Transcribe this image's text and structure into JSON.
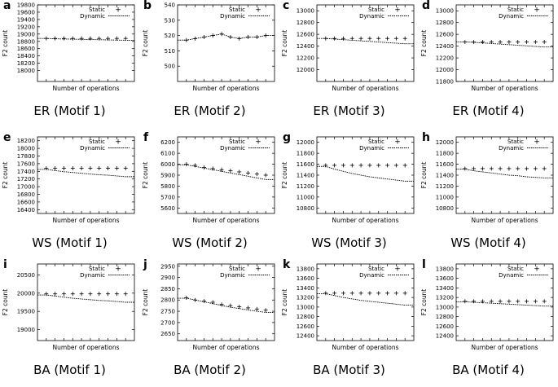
{
  "figure": {
    "static_label": "Static",
    "dynamic_label": "Dynamic",
    "static_marker": "+",
    "xlabel": "Number of operations",
    "ylabel": "F2 count"
  },
  "chart_data": [
    {
      "letter": "a",
      "caption": "ER (Motif 1)",
      "type": "line",
      "title": "",
      "xlabel": "Number of operations",
      "ylabel": "F2 count",
      "ylim": [
        17700,
        19800
      ],
      "yticks": [
        18000,
        18200,
        18400,
        18600,
        18800,
        19000,
        19200,
        19400,
        19600,
        19800
      ],
      "x": [
        1,
        2,
        3,
        4,
        5,
        6,
        7,
        8,
        9,
        10
      ],
      "series": [
        {
          "name": "Static",
          "values": [
            18880,
            18880,
            18880,
            18880,
            18880,
            18880,
            18880,
            18880,
            18880,
            18880
          ]
        },
        {
          "name": "Dynamic",
          "values": [
            18880,
            18870,
            18865,
            18860,
            18855,
            18850,
            18845,
            18840,
            18835,
            18830
          ]
        }
      ]
    },
    {
      "letter": "b",
      "caption": "ER (Motif 2)",
      "type": "line",
      "title": "",
      "xlabel": "Number of operations",
      "ylabel": "F2 count",
      "ylim": [
        490,
        540
      ],
      "yticks": [
        500,
        510,
        520,
        530,
        540
      ],
      "x": [
        1,
        2,
        3,
        4,
        5,
        6,
        7,
        8,
        9,
        10
      ],
      "series": [
        {
          "name": "Static",
          "values": [
            517,
            518,
            519,
            520,
            521,
            519,
            518,
            519,
            519,
            520
          ]
        },
        {
          "name": "Dynamic",
          "values": [
            517,
            518,
            519,
            520,
            521,
            519,
            518,
            519,
            519,
            520
          ]
        }
      ]
    },
    {
      "letter": "c",
      "caption": "ER (Motif 3)",
      "type": "line",
      "title": "",
      "xlabel": "Number of operations",
      "ylabel": "F2 count",
      "ylim": [
        11800,
        13100
      ],
      "yticks": [
        12000,
        12200,
        12400,
        12600,
        12800,
        13000
      ],
      "x": [
        1,
        2,
        3,
        4,
        5,
        6,
        7,
        8,
        9,
        10
      ],
      "series": [
        {
          "name": "Static",
          "values": [
            12530,
            12530,
            12530,
            12530,
            12530,
            12530,
            12530,
            12530,
            12530,
            12530
          ]
        },
        {
          "name": "Dynamic",
          "values": [
            12530,
            12520,
            12510,
            12500,
            12490,
            12480,
            12470,
            12460,
            12450,
            12440
          ]
        }
      ]
    },
    {
      "letter": "d",
      "caption": "ER (Motif 4)",
      "type": "line",
      "title": "",
      "xlabel": "Number of operations",
      "ylabel": "F2 count",
      "ylim": [
        11800,
        13100
      ],
      "yticks": [
        11800,
        12000,
        12200,
        12400,
        12600,
        12800,
        13000
      ],
      "x": [
        1,
        2,
        3,
        4,
        5,
        6,
        7,
        8,
        9,
        10
      ],
      "series": [
        {
          "name": "Static",
          "values": [
            12470,
            12470,
            12470,
            12470,
            12470,
            12470,
            12470,
            12470,
            12470,
            12470
          ]
        },
        {
          "name": "Dynamic",
          "values": [
            12470,
            12465,
            12455,
            12445,
            12435,
            12425,
            12415,
            12405,
            12395,
            12385
          ]
        }
      ]
    },
    {
      "letter": "e",
      "caption": "WS (Motif 1)",
      "type": "line",
      "title": "",
      "xlabel": "Number of operations",
      "ylabel": "F2 count",
      "ylim": [
        16300,
        18300
      ],
      "yticks": [
        16400,
        16600,
        16800,
        17000,
        17200,
        17400,
        17600,
        17800,
        18000,
        18200
      ],
      "x": [
        1,
        2,
        3,
        4,
        5,
        6,
        7,
        8,
        9,
        10
      ],
      "series": [
        {
          "name": "Static",
          "values": [
            17480,
            17480,
            17480,
            17480,
            17480,
            17480,
            17480,
            17480,
            17480,
            17480
          ]
        },
        {
          "name": "Dynamic",
          "values": [
            17450,
            17420,
            17390,
            17370,
            17350,
            17330,
            17310,
            17300,
            17280,
            17260
          ]
        }
      ]
    },
    {
      "letter": "f",
      "caption": "WS (Motif 2)",
      "type": "line",
      "title": "",
      "xlabel": "Number of operations",
      "ylabel": "F2 count",
      "ylim": [
        5550,
        6250
      ],
      "yticks": [
        5600,
        5700,
        5800,
        5900,
        6000,
        6100,
        6200
      ],
      "x": [
        1,
        2,
        3,
        4,
        5,
        6,
        7,
        8,
        9,
        10
      ],
      "series": [
        {
          "name": "Static",
          "values": [
            6000,
            5990,
            5970,
            5960,
            5950,
            5940,
            5930,
            5920,
            5910,
            5900
          ]
        },
        {
          "name": "Dynamic",
          "values": [
            5995,
            5980,
            5965,
            5950,
            5935,
            5920,
            5905,
            5890,
            5875,
            5860
          ]
        }
      ]
    },
    {
      "letter": "g",
      "caption": "WS (Motif 3)",
      "type": "line",
      "title": "",
      "xlabel": "Number of operations",
      "ylabel": "F2 count",
      "ylim": [
        10700,
        12100
      ],
      "yticks": [
        10800,
        11000,
        11200,
        11400,
        11600,
        11800,
        12000
      ],
      "x": [
        1,
        2,
        3,
        4,
        5,
        6,
        7,
        8,
        9,
        10
      ],
      "series": [
        {
          "name": "Static",
          "values": [
            11580,
            11580,
            11580,
            11580,
            11580,
            11580,
            11580,
            11580,
            11580,
            11580
          ]
        },
        {
          "name": "Dynamic",
          "values": [
            11560,
            11510,
            11470,
            11430,
            11400,
            11370,
            11350,
            11330,
            11310,
            11290
          ]
        }
      ]
    },
    {
      "letter": "h",
      "caption": "WS (Motif 4)",
      "type": "line",
      "title": "",
      "xlabel": "Number of operations",
      "ylabel": "F2 count",
      "ylim": [
        10700,
        12100
      ],
      "yticks": [
        10800,
        11000,
        11200,
        11400,
        11600,
        11800,
        12000
      ],
      "x": [
        1,
        2,
        3,
        4,
        5,
        6,
        7,
        8,
        9,
        10
      ],
      "series": [
        {
          "name": "Static",
          "values": [
            11520,
            11520,
            11520,
            11520,
            11520,
            11520,
            11520,
            11520,
            11520,
            11520
          ]
        },
        {
          "name": "Dynamic",
          "values": [
            11510,
            11480,
            11460,
            11440,
            11420,
            11400,
            11390,
            11370,
            11360,
            11350
          ]
        }
      ]
    },
    {
      "letter": "i",
      "caption": "BA (Motif 1)",
      "type": "line",
      "title": "",
      "xlabel": "Number of operations",
      "ylabel": "F2 count",
      "ylim": [
        18700,
        20800
      ],
      "yticks": [
        19000,
        19500,
        20000,
        20500
      ],
      "x": [
        1,
        2,
        3,
        4,
        5,
        6,
        7,
        8,
        9,
        10
      ],
      "series": [
        {
          "name": "Static",
          "values": [
            19980,
            19980,
            19980,
            19980,
            19980,
            19980,
            19980,
            19980,
            19980,
            19980
          ]
        },
        {
          "name": "Dynamic",
          "values": [
            19950,
            19920,
            19890,
            19860,
            19840,
            19820,
            19800,
            19790,
            19770,
            19750
          ]
        }
      ]
    },
    {
      "letter": "j",
      "caption": "BA (Motif 2)",
      "type": "line",
      "title": "",
      "xlabel": "Number of operations",
      "ylabel": "F2 count",
      "ylim": [
        2620,
        2960
      ],
      "yticks": [
        2650,
        2700,
        2750,
        2800,
        2850,
        2900,
        2950
      ],
      "x": [
        1,
        2,
        3,
        4,
        5,
        6,
        7,
        8,
        9,
        10
      ],
      "series": [
        {
          "name": "Static",
          "values": [
            2810,
            2800,
            2795,
            2790,
            2780,
            2775,
            2770,
            2765,
            2760,
            2755
          ]
        },
        {
          "name": "Dynamic",
          "values": [
            2808,
            2800,
            2792,
            2784,
            2776,
            2768,
            2762,
            2756,
            2750,
            2745
          ]
        }
      ]
    },
    {
      "letter": "k",
      "caption": "BA (Motif 3)",
      "type": "line",
      "title": "",
      "xlabel": "Number of operations",
      "ylabel": "F2 count",
      "ylim": [
        12300,
        13900
      ],
      "yticks": [
        12400,
        12600,
        12800,
        13000,
        13200,
        13400,
        13600,
        13800
      ],
      "x": [
        1,
        2,
        3,
        4,
        5,
        6,
        7,
        8,
        9,
        10
      ],
      "series": [
        {
          "name": "Static",
          "values": [
            13290,
            13290,
            13290,
            13290,
            13290,
            13290,
            13290,
            13290,
            13290,
            13290
          ]
        },
        {
          "name": "Dynamic",
          "values": [
            13280,
            13240,
            13200,
            13170,
            13140,
            13120,
            13100,
            13080,
            13060,
            13040
          ]
        }
      ]
    },
    {
      "letter": "l",
      "caption": "BA (Motif 4)",
      "type": "line",
      "title": "",
      "xlabel": "Number of operations",
      "ylabel": "F2 count",
      "ylim": [
        12300,
        13900
      ],
      "yticks": [
        12400,
        12600,
        12800,
        13000,
        13200,
        13400,
        13600,
        13800
      ],
      "x": [
        1,
        2,
        3,
        4,
        5,
        6,
        7,
        8,
        9,
        10
      ],
      "series": [
        {
          "name": "Static",
          "values": [
            13120,
            13120,
            13120,
            13120,
            13120,
            13120,
            13120,
            13120,
            13120,
            13120
          ]
        },
        {
          "name": "Dynamic",
          "values": [
            13110,
            13100,
            13090,
            13080,
            13070,
            13060,
            13050,
            13040,
            13030,
            13020
          ]
        }
      ]
    }
  ]
}
